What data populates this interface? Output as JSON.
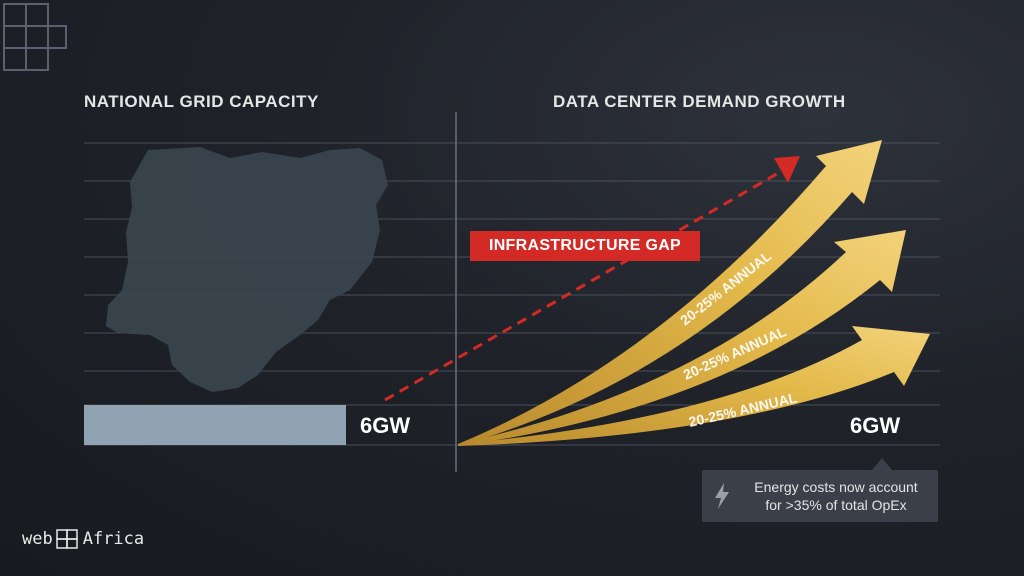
{
  "left_panel": {
    "title": "NATIONAL GRID CAPACITY",
    "value_label": "6GW"
  },
  "right_panel": {
    "title": "DATA CENTER DEMAND GROWTH",
    "value_label": "6GW",
    "arrow_labels": [
      "20-25% ANNUAL",
      "20-25% ANNUAL",
      "20-25% ANNUAL"
    ]
  },
  "gap_label": "INFRASTRUCTURE GAP",
  "callout": {
    "icon": "lightning-icon",
    "line1": "Energy costs now account",
    "line2": "for >35% of total OpEx"
  },
  "brand": {
    "left": "web",
    "right": "Africa"
  },
  "colors": {
    "background": "#1f2229",
    "gap_red": "#d42a26",
    "arrow_gold": "#e3b94a",
    "grid_bar": "#8fa3b3",
    "map": "#3b4650"
  }
}
